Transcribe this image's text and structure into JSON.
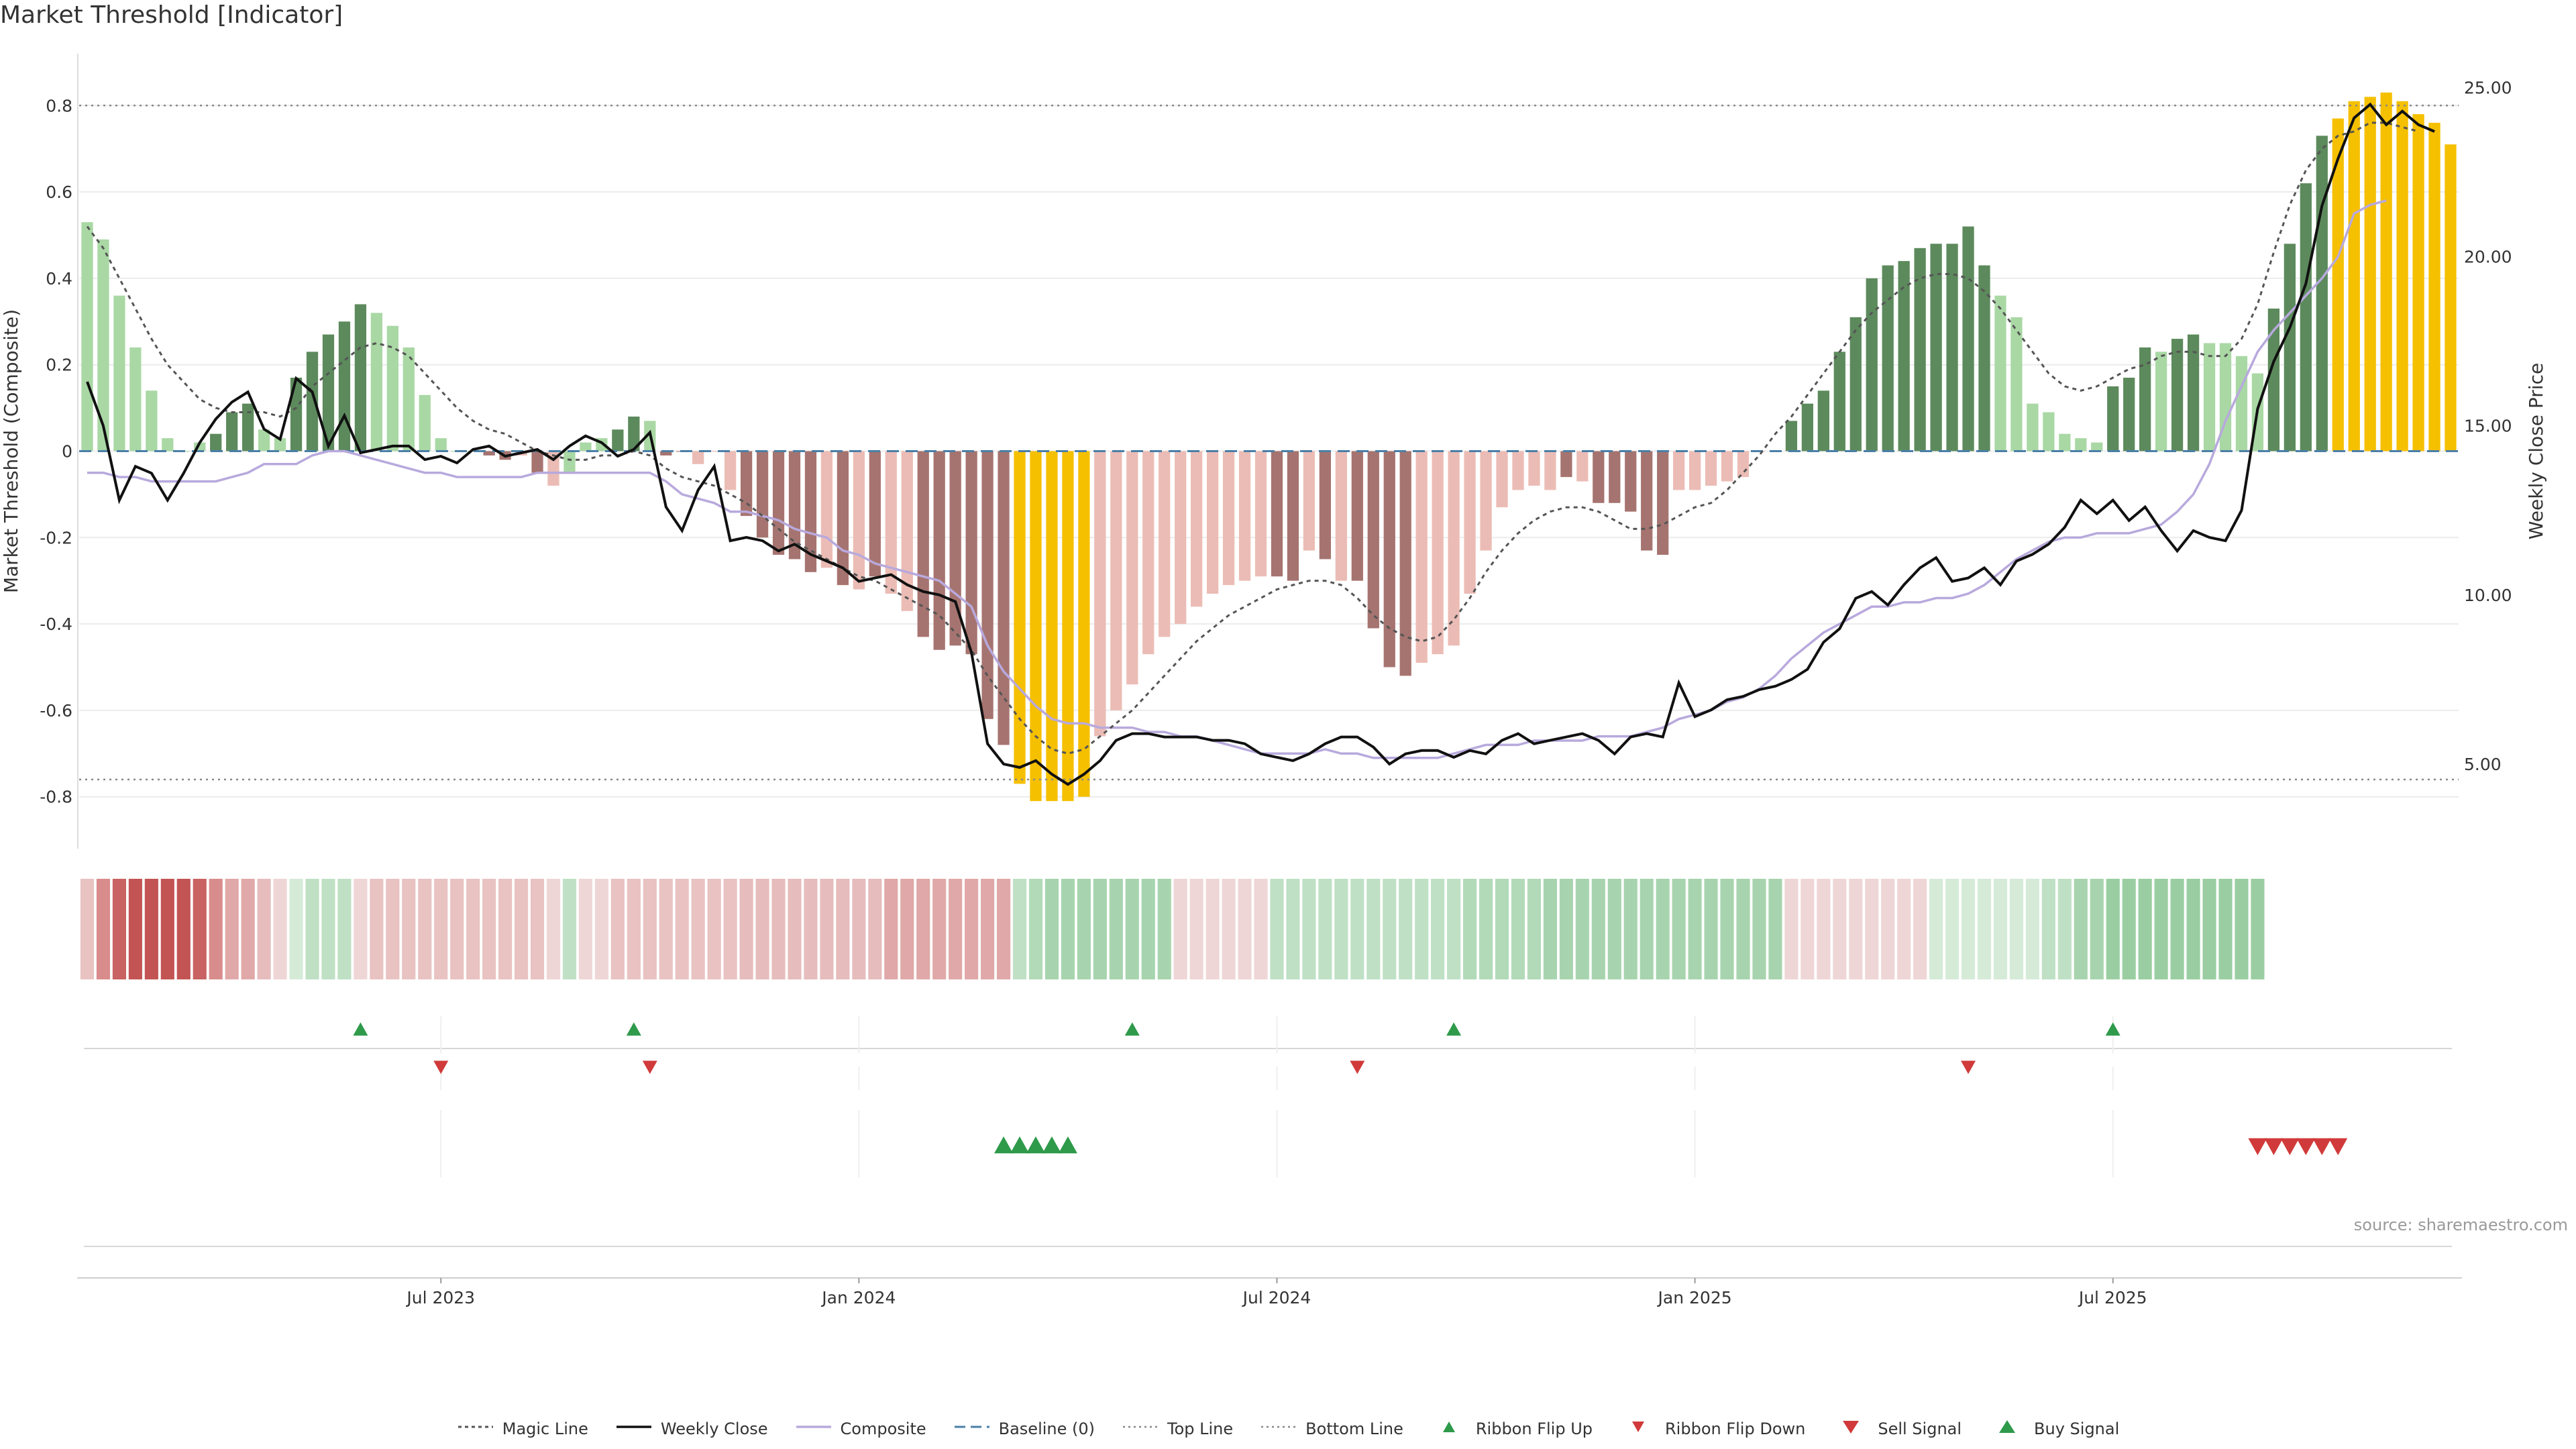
{
  "title": "Market Threshold [Indicator]",
  "source": "source: sharemaestro.com",
  "chart_data": {
    "type": "bar",
    "title": "Market Threshold [Indicator]",
    "ylabel": "Market Threshold (Composite)",
    "y2label": "Weekly Close Price",
    "ylim": [
      -0.92,
      0.92
    ],
    "y2lim": [
      2.5,
      26.0
    ],
    "yticks": [
      "0.8",
      "0.6",
      "0.4",
      "0.2",
      "0",
      "-0.2",
      "-0.4",
      "-0.6",
      "-0.8"
    ],
    "y2ticks": [
      "25.00",
      "20.00",
      "15.00",
      "10.00",
      "5.00"
    ],
    "xticks": [
      "Jul 2023",
      "Jan 2024",
      "Jul 2024",
      "Jan 2025",
      "Jul 2025"
    ],
    "xtick_index": [
      22,
      48,
      74,
      100,
      126
    ],
    "top_line": 0.8,
    "bottom_line": -0.76,
    "grid": true,
    "legend_position": "bottom-center",
    "composite": [
      0.53,
      0.49,
      0.36,
      0.24,
      0.14,
      0.03,
      0.0,
      0.02,
      0.04,
      0.09,
      0.11,
      0.05,
      0.03,
      0.17,
      0.23,
      0.27,
      0.3,
      0.34,
      0.32,
      0.29,
      0.24,
      0.13,
      0.03,
      0.0,
      0.0,
      -0.01,
      -0.02,
      -0.01,
      -0.05,
      -0.08,
      -0.05,
      0.02,
      0.03,
      0.05,
      0.08,
      0.07,
      -0.01,
      0.0,
      -0.03,
      0.0,
      -0.09,
      -0.15,
      -0.2,
      -0.24,
      -0.25,
      -0.28,
      -0.27,
      -0.31,
      -0.32,
      -0.29,
      -0.33,
      -0.37,
      -0.43,
      -0.46,
      -0.45,
      -0.47,
      -0.62,
      -0.68,
      -0.77,
      -0.81,
      -0.81,
      -0.81,
      -0.8,
      -0.66,
      -0.6,
      -0.54,
      -0.47,
      -0.43,
      -0.4,
      -0.36,
      -0.33,
      -0.31,
      -0.3,
      -0.29,
      -0.29,
      -0.3,
      -0.23,
      -0.25,
      -0.3,
      -0.3,
      -0.41,
      -0.5,
      -0.52,
      -0.49,
      -0.47,
      -0.45,
      -0.33,
      -0.23,
      -0.13,
      -0.09,
      -0.08,
      -0.09,
      -0.06,
      -0.07,
      -0.12,
      -0.12,
      -0.14,
      -0.23,
      -0.24,
      -0.09,
      -0.09,
      -0.08,
      -0.07,
      -0.06,
      0.0,
      0.0,
      0.07,
      0.11,
      0.14,
      0.23,
      0.31,
      0.4,
      0.43,
      0.44,
      0.47,
      0.48,
      0.48,
      0.52,
      0.43,
      0.36,
      0.31,
      0.11,
      0.09,
      0.04,
      0.03,
      0.02,
      0.15,
      0.17,
      0.24,
      0.23,
      0.26,
      0.27,
      0.25,
      0.25,
      0.22,
      0.18,
      0.33,
      0.48,
      0.62,
      0.73,
      0.77,
      0.81,
      0.82,
      0.83,
      0.81,
      0.78,
      0.76,
      0.71
    ],
    "bar_colors": [
      "light-green",
      "light-green",
      "light-green",
      "light-green",
      "light-green",
      "light-green",
      "light-green",
      "light-green",
      "dark-green",
      "dark-green",
      "dark-green",
      "light-green",
      "light-green",
      "dark-green",
      "dark-green",
      "dark-green",
      "dark-green",
      "dark-green",
      "light-green",
      "light-green",
      "light-green",
      "light-green",
      "light-green",
      "light-green",
      "light-green",
      "dark-red",
      "dark-red",
      "light-red",
      "dark-red",
      "light-red",
      "light-green",
      "light-green",
      "light-green",
      "dark-green",
      "dark-green",
      "light-green",
      "dark-red",
      "dark-red",
      "light-red",
      "light-red",
      "light-red",
      "dark-red",
      "dark-red",
      "dark-red",
      "dark-red",
      "dark-red",
      "light-red",
      "dark-red",
      "light-red",
      "dark-red",
      "light-red",
      "light-red",
      "dark-red",
      "dark-red",
      "dark-red",
      "dark-red",
      "dark-red",
      "dark-red",
      "extreme",
      "extreme",
      "extreme",
      "extreme",
      "extreme",
      "light-red",
      "light-red",
      "light-red",
      "light-red",
      "light-red",
      "light-red",
      "light-red",
      "light-red",
      "light-red",
      "light-red",
      "light-red",
      "dark-red",
      "dark-red",
      "light-red",
      "dark-red",
      "light-red",
      "dark-red",
      "dark-red",
      "dark-red",
      "dark-red",
      "light-red",
      "light-red",
      "light-red",
      "light-red",
      "light-red",
      "light-red",
      "light-red",
      "light-red",
      "light-red",
      "dark-red",
      "light-red",
      "dark-red",
      "dark-red",
      "dark-red",
      "dark-red",
      "dark-red",
      "light-red",
      "light-red",
      "light-red",
      "light-red",
      "light-red",
      "light-red",
      "light-green",
      "dark-green",
      "dark-green",
      "dark-green",
      "dark-green",
      "dark-green",
      "dark-green",
      "dark-green",
      "dark-green",
      "dark-green",
      "dark-green",
      "dark-green",
      "dark-green",
      "dark-green",
      "light-green",
      "light-green",
      "light-green",
      "light-green",
      "light-green",
      "light-green",
      "light-green",
      "dark-green",
      "dark-green",
      "dark-green",
      "light-green",
      "dark-green",
      "dark-green",
      "light-green",
      "light-green",
      "light-green",
      "light-green",
      "dark-green",
      "dark-green",
      "dark-green",
      "dark-green",
      "extreme",
      "extreme",
      "extreme",
      "extreme",
      "extreme",
      "extreme",
      "extreme",
      "extreme",
      "light-green",
      "light-green"
    ],
    "magic_line": [
      0.52,
      0.47,
      0.4,
      0.33,
      0.26,
      0.2,
      0.16,
      0.12,
      0.1,
      0.09,
      0.09,
      0.09,
      0.08,
      0.1,
      0.15,
      0.18,
      0.21,
      0.24,
      0.25,
      0.24,
      0.22,
      0.18,
      0.14,
      0.1,
      0.07,
      0.05,
      0.04,
      0.02,
      0.0,
      -0.01,
      -0.02,
      -0.02,
      -0.01,
      -0.01,
      0.0,
      -0.01,
      -0.04,
      -0.06,
      -0.07,
      -0.08,
      -0.1,
      -0.12,
      -0.15,
      -0.18,
      -0.21,
      -0.23,
      -0.25,
      -0.27,
      -0.29,
      -0.3,
      -0.32,
      -0.34,
      -0.36,
      -0.38,
      -0.42,
      -0.46,
      -0.52,
      -0.57,
      -0.62,
      -0.66,
      -0.69,
      -0.7,
      -0.69,
      -0.66,
      -0.63,
      -0.6,
      -0.56,
      -0.52,
      -0.48,
      -0.44,
      -0.41,
      -0.38,
      -0.36,
      -0.34,
      -0.32,
      -0.31,
      -0.3,
      -0.3,
      -0.31,
      -0.34,
      -0.38,
      -0.41,
      -0.43,
      -0.44,
      -0.43,
      -0.39,
      -0.34,
      -0.28,
      -0.23,
      -0.19,
      -0.16,
      -0.14,
      -0.13,
      -0.13,
      -0.14,
      -0.16,
      -0.18,
      -0.18,
      -0.17,
      -0.15,
      -0.13,
      -0.12,
      -0.09,
      -0.05,
      -0.01,
      0.04,
      0.08,
      0.13,
      0.18,
      0.23,
      0.28,
      0.32,
      0.35,
      0.38,
      0.4,
      0.41,
      0.41,
      0.4,
      0.37,
      0.33,
      0.28,
      0.23,
      0.18,
      0.15,
      0.14,
      0.15,
      0.17,
      0.19,
      0.2,
      0.22,
      0.23,
      0.23,
      0.22,
      0.22,
      0.26,
      0.34,
      0.46,
      0.57,
      0.65,
      0.7,
      0.73,
      0.74,
      0.76,
      0.76,
      0.75,
      0.74
    ],
    "weekly_close": [
      16.3,
      15.0,
      12.8,
      13.8,
      13.6,
      12.8,
      13.6,
      14.5,
      15.2,
      15.7,
      16.0,
      14.9,
      14.6,
      16.4,
      16.0,
      14.4,
      15.3,
      14.2,
      14.3,
      14.4,
      14.4,
      14.0,
      14.1,
      13.9,
      14.3,
      14.4,
      14.1,
      14.2,
      14.3,
      14.0,
      14.4,
      14.7,
      14.5,
      14.1,
      14.3,
      14.8,
      12.6,
      11.9,
      13.1,
      13.8,
      11.6,
      11.7,
      11.6,
      11.3,
      11.5,
      11.2,
      11.0,
      10.8,
      10.4,
      10.5,
      10.6,
      10.3,
      10.1,
      10.0,
      9.8,
      8.3,
      5.6,
      5.0,
      4.9,
      5.1,
      4.7,
      4.4,
      4.7,
      5.1,
      5.7,
      5.9,
      5.9,
      5.8,
      5.8,
      5.8,
      5.7,
      5.7,
      5.6,
      5.3,
      5.2,
      5.1,
      5.3,
      5.6,
      5.8,
      5.8,
      5.5,
      5.0,
      5.3,
      5.4,
      5.4,
      5.2,
      5.4,
      5.3,
      5.7,
      5.9,
      5.6,
      5.7,
      5.8,
      5.9,
      5.7,
      5.3,
      5.8,
      5.9,
      5.8,
      7.4,
      6.4,
      6.6,
      6.9,
      7.0,
      7.2,
      7.3,
      7.5,
      7.8,
      8.6,
      9.0,
      9.9,
      10.1,
      9.7,
      10.3,
      10.8,
      11.1,
      10.4,
      10.5,
      10.8,
      10.3,
      11.0,
      11.2,
      11.5,
      12.0,
      12.8,
      12.4,
      12.8,
      12.2,
      12.6,
      11.9,
      11.3,
      11.9,
      11.7,
      11.6,
      12.5,
      15.5,
      16.9,
      17.9,
      19.2,
      21.5,
      22.9,
      24.1,
      24.5,
      23.9,
      24.3,
      23.9,
      23.7
    ]
  },
  "composite_line": [
    -0.05,
    -0.05,
    -0.06,
    -0.06,
    -0.07,
    -0.07,
    -0.07,
    -0.07,
    -0.07,
    -0.06,
    -0.05,
    -0.03,
    -0.03,
    -0.03,
    -0.01,
    0.0,
    0.0,
    -0.01,
    -0.02,
    -0.03,
    -0.04,
    -0.05,
    -0.05,
    -0.06,
    -0.06,
    -0.06,
    -0.06,
    -0.06,
    -0.05,
    -0.05,
    -0.05,
    -0.05,
    -0.05,
    -0.05,
    -0.05,
    -0.05,
    -0.07,
    -0.1,
    -0.11,
    -0.12,
    -0.14,
    -0.14,
    -0.15,
    -0.16,
    -0.18,
    -0.19,
    -0.2,
    -0.23,
    -0.24,
    -0.26,
    -0.27,
    -0.28,
    -0.29,
    -0.3,
    -0.33,
    -0.36,
    -0.45,
    -0.51,
    -0.55,
    -0.59,
    -0.62,
    -0.63,
    -0.63,
    -0.64,
    -0.64,
    -0.64,
    -0.65,
    -0.65,
    -0.66,
    -0.66,
    -0.67,
    -0.68,
    -0.69,
    -0.7,
    -0.7,
    -0.7,
    -0.7,
    -0.69,
    -0.7,
    -0.7,
    -0.71,
    -0.71,
    -0.71,
    -0.71,
    -0.71,
    -0.7,
    -0.69,
    -0.68,
    -0.68,
    -0.68,
    -0.67,
    -0.67,
    -0.67,
    -0.67,
    -0.66,
    -0.66,
    -0.66,
    -0.65,
    -0.64,
    -0.62,
    -0.61,
    -0.6,
    -0.58,
    -0.57,
    -0.55,
    -0.52,
    -0.48,
    -0.45,
    -0.42,
    -0.4,
    -0.38,
    -0.36,
    -0.36,
    -0.35,
    -0.35,
    -0.34,
    -0.34,
    -0.33,
    -0.31,
    -0.28,
    -0.25,
    -0.23,
    -0.21,
    -0.2,
    -0.2,
    -0.19,
    -0.19,
    -0.19,
    -0.18,
    -0.17,
    -0.14,
    -0.1,
    -0.03,
    0.07,
    0.15,
    0.23,
    0.28,
    0.32,
    0.36,
    0.4,
    0.45,
    0.55,
    0.57,
    0.58
  ],
  "ribbon": [
    "#e9c2c2",
    "#d98c8c",
    "#c96262",
    "#c35454",
    "#c35454",
    "#c35454",
    "#c35454",
    "#c96262",
    "#d98c8c",
    "#e0a8a8",
    "#e0a8a8",
    "#e6bcbc",
    "#efd6d6",
    "#d5ebd8",
    "#bfe0c4",
    "#bfe0c4",
    "#bfe0c4",
    "#efd6d6",
    "#e9c2c2",
    "#e9c2c2",
    "#e9c2c2",
    "#e9c2c2",
    "#e9c2c2",
    "#e9c2c2",
    "#e9c2c2",
    "#e9c2c2",
    "#e9c2c2",
    "#e9c2c2",
    "#e9c2c2",
    "#efd6d6",
    "#bfe0c4",
    "#efd6d6",
    "#efd6d6",
    "#e9c2c2",
    "#e9c2c2",
    "#e9c2c2",
    "#e9c2c2",
    "#e9c2c2",
    "#e9c2c2",
    "#e9c2c2",
    "#e9c2c2",
    "#e6bcbc",
    "#e6bcbc",
    "#e6bcbc",
    "#e6bcbc",
    "#e6bcbc",
    "#e6bcbc",
    "#e6bcbc",
    "#e6bcbc",
    "#e6bcbc",
    "#e0a8a8",
    "#e0a8a8",
    "#e0a8a8",
    "#e0a8a8",
    "#e0a8a8",
    "#e0a8a8",
    "#e0a8a8",
    "#e0a8a8",
    "#bfe0c4",
    "#b2dab8",
    "#a7d4ae",
    "#a7d4ae",
    "#a7d4ae",
    "#a7d4ae",
    "#a7d4ae",
    "#a7d4ae",
    "#a7d4ae",
    "#a7d4ae",
    "#efd6d6",
    "#efd6d6",
    "#efd6d6",
    "#efd6d6",
    "#efd6d6",
    "#efd6d6",
    "#bfe0c4",
    "#bfe0c4",
    "#bfe0c4",
    "#bfe0c4",
    "#bfe0c4",
    "#bfe0c4",
    "#bfe0c4",
    "#bfe0c4",
    "#bfe0c4",
    "#bfe0c4",
    "#bfe0c4",
    "#bfe0c4",
    "#b2dab8",
    "#b2dab8",
    "#b2dab8",
    "#b2dab8",
    "#b2dab8",
    "#a7d4ae",
    "#a7d4ae",
    "#a7d4ae",
    "#a7d4ae",
    "#a7d4ae",
    "#a7d4ae",
    "#a7d4ae",
    "#a7d4ae",
    "#a7d4ae",
    "#a7d4ae",
    "#a7d4ae",
    "#a7d4ae",
    "#a7d4ae",
    "#a7d4ae",
    "#a7d4ae",
    "#efd6d6",
    "#efd6d6",
    "#efd6d6",
    "#efd6d6",
    "#efd6d6",
    "#efd6d6",
    "#efd6d6",
    "#efd6d6",
    "#efd6d6",
    "#d5ebd8",
    "#d5ebd8",
    "#d5ebd8",
    "#d5ebd8",
    "#d5ebd8",
    "#d5ebd8",
    "#d5ebd8",
    "#bfe0c4",
    "#bfe0c4",
    "#a7d4ae",
    "#a7d4ae",
    "#9acea2",
    "#9acea2",
    "#9acea2",
    "#9acea2",
    "#9acea2",
    "#9acea2",
    "#9acea2",
    "#9acea2",
    "#9acea2",
    "#9acea2"
  ],
  "ribbon_flip_up_idx": [
    17,
    34,
    65,
    85,
    126
  ],
  "ribbon_flip_down_idx": [
    22,
    35,
    79,
    117
  ],
  "buy_signal_idx": [
    57,
    58,
    59,
    60,
    61
  ],
  "sell_signal_idx": [
    135,
    136,
    137,
    138,
    139,
    140
  ],
  "colors": {
    "light_green": "#a9d8a4",
    "dark_green": "#5c8a5c",
    "light_red": "#ebbcb5",
    "dark_red": "#a67470",
    "extreme": "#f5c000",
    "composite_line": "#b8a9dd",
    "baseline": "#4a7fa8",
    "signal_up": "#2e9a4a",
    "signal_down": "#d13a3a"
  },
  "legend": [
    {
      "key": "magic",
      "label": "Magic Line"
    },
    {
      "key": "close",
      "label": "Weekly Close"
    },
    {
      "key": "composite",
      "label": "Composite"
    },
    {
      "key": "baseline",
      "label": "Baseline (0)"
    },
    {
      "key": "top",
      "label": "Top Line"
    },
    {
      "key": "bottom",
      "label": "Bottom Line"
    },
    {
      "key": "flipup",
      "label": "Ribbon Flip Up"
    },
    {
      "key": "flipdown",
      "label": "Ribbon Flip Down"
    },
    {
      "key": "sell",
      "label": "Sell Signal"
    },
    {
      "key": "buy",
      "label": "Buy Signal"
    }
  ]
}
